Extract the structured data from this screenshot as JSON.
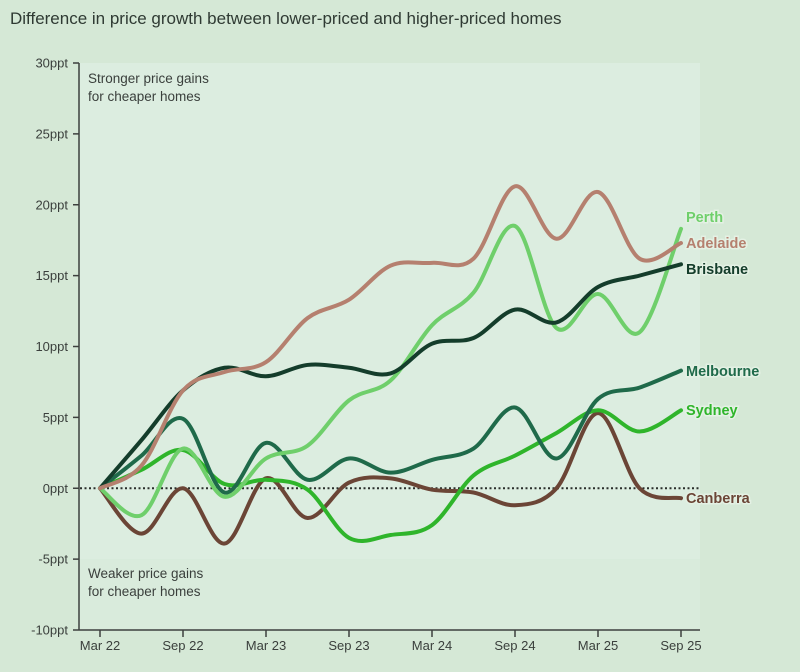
{
  "chart_data": {
    "type": "line",
    "title": "Difference in price growth between lower-priced and higher-priced homes",
    "xlabel": "",
    "ylabel": "",
    "ylim": [
      -10,
      30
    ],
    "yticks": [
      30,
      25,
      20,
      15,
      10,
      5,
      0,
      -5,
      -10
    ],
    "ytick_labels": [
      "30ppt",
      "25ppt",
      "20ppt",
      "15ppt",
      "10ppt",
      "5ppt",
      "0ppt",
      "-5ppt",
      "-10ppt"
    ],
    "x": [
      "Mar 22",
      "Jun 22",
      "Sep 22",
      "Dec 22",
      "Mar 23",
      "Jun 23",
      "Sep 23",
      "Dec 23",
      "Mar 24",
      "Jun 24",
      "Sep 24",
      "Dec 24",
      "Mar 25",
      "Jun 25",
      "Sep 25"
    ],
    "xtick_labels": [
      "Mar 22",
      "Sep 22",
      "Mar 23",
      "Sep 23",
      "Mar 24",
      "Sep 24",
      "Mar 25",
      "Sep 25"
    ],
    "annotations": {
      "top": [
        "Stronger price gains",
        "for cheaper homes"
      ],
      "bottom": [
        "Weaker price gains",
        "for cheaper homes"
      ]
    },
    "zero_line": "dotted",
    "grid": false,
    "legend": "direct labels at line ends",
    "series": [
      {
        "name": "Perth",
        "color": "#6fcf6b",
        "values": [
          0,
          -1.9,
          2.8,
          -0.6,
          2.1,
          3.0,
          6.2,
          7.6,
          11.5,
          13.8,
          18.5,
          11.3,
          13.7,
          11.0,
          18.3
        ]
      },
      {
        "name": "Adelaide",
        "color": "#b5806f",
        "values": [
          0,
          1.6,
          6.9,
          8.2,
          8.9,
          12.0,
          13.3,
          15.7,
          15.9,
          16.2,
          21.3,
          17.6,
          20.9,
          16.2,
          17.3
        ]
      },
      {
        "name": "Brisbane",
        "color": "#143d2b",
        "values": [
          0,
          3.4,
          6.9,
          8.5,
          7.9,
          8.7,
          8.5,
          8.1,
          10.2,
          10.6,
          12.6,
          11.7,
          14.2,
          15.0,
          15.8
        ]
      },
      {
        "name": "Melbourne",
        "color": "#1f6a4a",
        "values": [
          0,
          2.3,
          4.9,
          -0.3,
          3.2,
          0.6,
          2.1,
          1.1,
          2.0,
          2.8,
          5.7,
          2.1,
          6.3,
          7.1,
          8.3
        ]
      },
      {
        "name": "Sydney",
        "color": "#2fb52b",
        "values": [
          0,
          1.3,
          2.7,
          0.3,
          0.6,
          -0.1,
          -3.5,
          -3.3,
          -2.6,
          0.9,
          2.3,
          3.9,
          5.5,
          4.0,
          5.5
        ]
      },
      {
        "name": "Canberra",
        "color": "#6b4536",
        "values": [
          0,
          -3.2,
          0,
          -3.9,
          0.7,
          -2.1,
          0.4,
          0.7,
          -0.1,
          -0.3,
          -1.2,
          0,
          5.3,
          0,
          -0.7
        ]
      }
    ]
  }
}
